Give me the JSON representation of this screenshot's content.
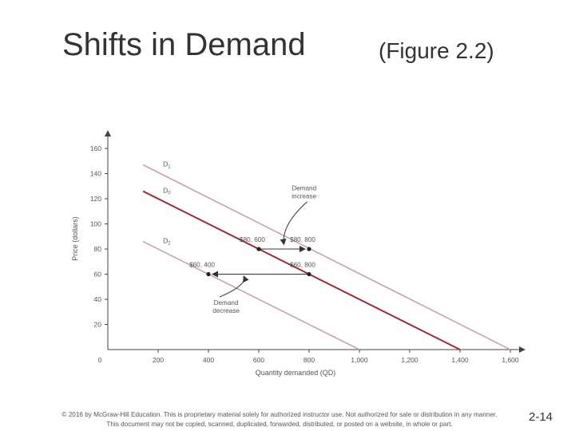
{
  "slide": {
    "title": "Shifts in Demand",
    "subtitle": "(Figure 2.2)",
    "footer_line1": "© 2016 by McGraw-Hill Education. This is proprietary material solely for authorized instructor use. Not authorized for sale or distribution in any manner.",
    "footer_line2": "This document may not be copied, scanned, duplicated, forwarded, distributed, or posted on a website, in whole or part.",
    "page_number": "2-14"
  },
  "colors": {
    "d0": "#9b2d3a",
    "shifted": "#c9a2a6",
    "axis": "#444444",
    "text": "#555555"
  },
  "chart_data": {
    "type": "line",
    "xlabel": "Quantity demanded (QD)",
    "ylabel": "Price (dollars)",
    "xlim": [
      0,
      1600
    ],
    "ylim": [
      0,
      160
    ],
    "x_ticks": [
      {
        "value": 0,
        "label": "0"
      },
      {
        "value": 200,
        "label": "200"
      },
      {
        "value": 400,
        "label": "400"
      },
      {
        "value": 600,
        "label": "600"
      },
      {
        "value": 800,
        "label": "800"
      },
      {
        "value": 1000,
        "label": "1,000"
      },
      {
        "value": 1200,
        "label": "1,200"
      },
      {
        "value": 1400,
        "label": "1,400"
      },
      {
        "value": 1600,
        "label": "1,600"
      }
    ],
    "y_ticks": [
      {
        "value": 20,
        "label": "20"
      },
      {
        "value": 40,
        "label": "40"
      },
      {
        "value": 60,
        "label": "60"
      },
      {
        "value": 80,
        "label": "80"
      },
      {
        "value": 100,
        "label": "100"
      },
      {
        "value": 120,
        "label": "120"
      },
      {
        "value": 140,
        "label": "140"
      },
      {
        "value": 160,
        "label": "160"
      }
    ],
    "series": [
      {
        "name": "D1",
        "color": "#c9a2a6",
        "points": [
          [
            140,
            147
          ],
          [
            1600,
            0
          ]
        ]
      },
      {
        "name": "D0",
        "color": "#9b2d3a",
        "points": [
          [
            140,
            126
          ],
          [
            1400,
            0
          ]
        ]
      },
      {
        "name": "D2",
        "color": "#c9a2a6",
        "points": [
          [
            140,
            86
          ],
          [
            1000,
            0
          ]
        ]
      }
    ],
    "curve_labels": [
      {
        "series": "D1",
        "text": "D1",
        "x": 140,
        "y": 147
      },
      {
        "series": "D0",
        "text": "D0",
        "x": 140,
        "y": 126
      },
      {
        "series": "D2",
        "text": "D2",
        "x": 140,
        "y": 86
      }
    ],
    "points": [
      {
        "x": 600,
        "y": 80,
        "label": "$80, 600"
      },
      {
        "x": 800,
        "y": 80,
        "label": "$80, 800"
      },
      {
        "x": 400,
        "y": 60,
        "label": "$60, 400"
      },
      {
        "x": 800,
        "y": 60,
        "label": "$60, 800"
      }
    ],
    "arrows": [
      {
        "from": [
          600,
          80
        ],
        "to": [
          800,
          80
        ]
      },
      {
        "from": [
          800,
          60
        ],
        "to": [
          400,
          60
        ]
      }
    ],
    "annotations": [
      {
        "text_line1": "Demand",
        "text_line2": "increase",
        "x": 780,
        "y": 124,
        "pointer_to": [
          700,
          81
        ]
      },
      {
        "text_line1": "Demand",
        "text_line2": "decrease",
        "x": 470,
        "y": 33,
        "pointer_to": [
          540,
          61
        ]
      }
    ]
  }
}
